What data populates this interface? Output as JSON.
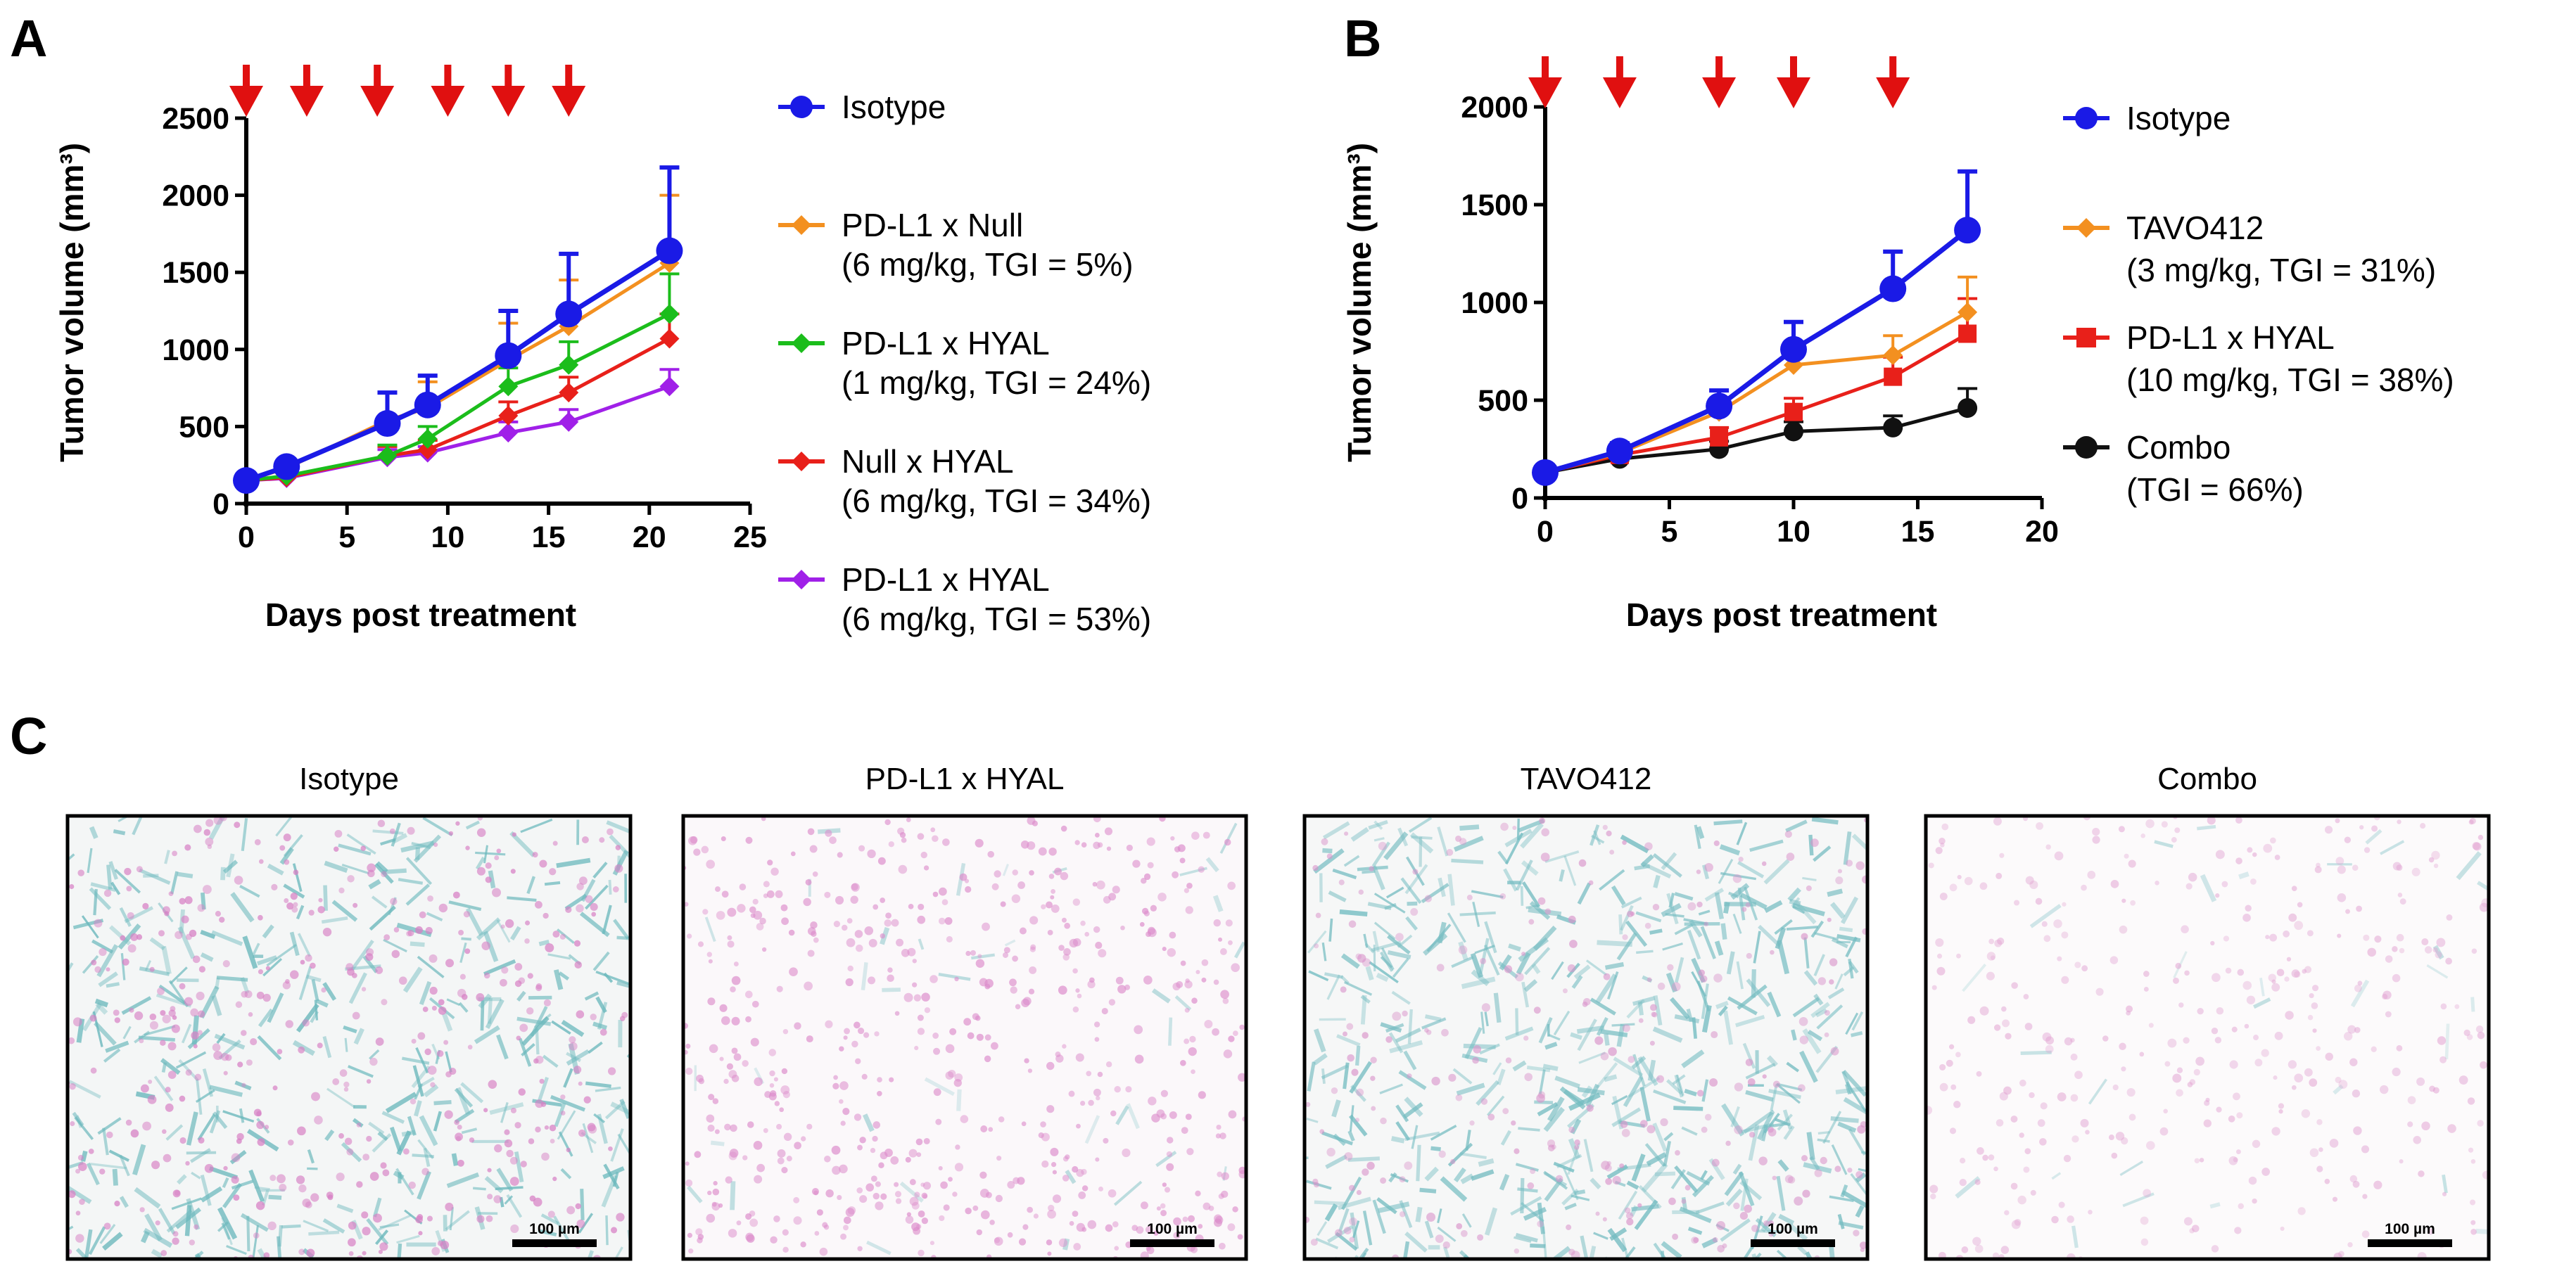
{
  "panels": {
    "a": "A",
    "b": "B",
    "c": "C"
  },
  "colors": {
    "isotype": "#1a1ae6",
    "pdl1_null": "#f39020",
    "pdl1_hyal_green": "#1bbd1b",
    "null_hyal": "#e8201a",
    "pdl1_hyal_purple": "#a020e8",
    "tavo412": "#f39020",
    "pdl1_hyal_red": "#e8201a",
    "combo": "#111111",
    "arrow": "#e01010"
  },
  "chart_data": [
    {
      "type": "line",
      "panel": "A",
      "xlabel": "Days post treatment",
      "ylabel": "Tumor volume (mm³)",
      "xlim": [
        0,
        25
      ],
      "ylim": [
        0,
        2500
      ],
      "xticks": [
        0,
        5,
        10,
        15,
        20,
        25
      ],
      "yticks": [
        0,
        500,
        1000,
        1500,
        2000,
        2500
      ],
      "dosing_days": [
        0,
        3,
        6.5,
        10,
        13,
        16
      ],
      "x": [
        0,
        2,
        7,
        9,
        13,
        16,
        21
      ],
      "legend_position": "right",
      "series": [
        {
          "name": "Isotype",
          "sub": "",
          "color": "#1a1ae6",
          "marker": "circle",
          "values": [
            150,
            240,
            520,
            640,
            960,
            1230,
            1640
          ],
          "err": [
            20,
            40,
            200,
            190,
            290,
            390,
            540
          ]
        },
        {
          "name": "PD-L1 x  Null",
          "sub": " (6 mg/kg, TGI = 5%)",
          "color": "#f39020",
          "marker": "diamond",
          "values": [
            150,
            230,
            540,
            620,
            930,
            1150,
            1560
          ],
          "err": [
            20,
            40,
            180,
            170,
            240,
            300,
            440
          ]
        },
        {
          "name": "PD-L1 x HYAL",
          "sub": "(1 mg/kg, TGI = 24%)",
          "color": "#1bbd1b",
          "marker": "diamond",
          "values": [
            150,
            180,
            310,
            420,
            760,
            900,
            1230
          ],
          "err": [
            20,
            30,
            70,
            80,
            120,
            150,
            260
          ]
        },
        {
          "name": "Null x HYAL",
          "sub": "(6 mg/kg, TGI = 34%)",
          "color": "#e8201a",
          "marker": "diamond",
          "values": [
            150,
            170,
            310,
            350,
            570,
            720,
            1070
          ],
          "err": [
            20,
            25,
            60,
            60,
            90,
            100,
            160
          ]
        },
        {
          "name": "PD-L1 x HYAL",
          "sub": "(6 mg/kg, TGI = 53%)",
          "color": "#a020e8",
          "marker": "diamond",
          "values": [
            150,
            165,
            300,
            330,
            460,
            530,
            760
          ],
          "err": [
            20,
            20,
            50,
            40,
            70,
            80,
            110
          ]
        }
      ]
    },
    {
      "type": "line",
      "panel": "B",
      "xlabel": "Days post treatment",
      "ylabel": "Tumor volume (mm³)",
      "xlim": [
        0,
        20
      ],
      "ylim": [
        0,
        2000
      ],
      "xticks": [
        0,
        5,
        10,
        15,
        20
      ],
      "yticks": [
        0,
        500,
        1000,
        1500,
        2000
      ],
      "dosing_days": [
        0,
        3,
        7,
        10,
        14
      ],
      "x": [
        0,
        3,
        7,
        10,
        14,
        17
      ],
      "legend_position": "right",
      "series": [
        {
          "name": "Isotype",
          "sub": "",
          "color": "#1a1ae6",
          "marker": "circle",
          "values": [
            130,
            240,
            470,
            760,
            1070,
            1370
          ],
          "err": [
            20,
            40,
            80,
            140,
            190,
            300
          ]
        },
        {
          "name": "TAVO412",
          "sub": "(3 mg/kg, TGI = 31%)",
          "color": "#f39020",
          "marker": "diamond",
          "values": [
            130,
            230,
            440,
            680,
            730,
            950
          ],
          "err": [
            20,
            30,
            60,
            100,
            100,
            180
          ]
        },
        {
          "name": "PD-L1 x HYAL",
          "sub": "(10 mg/kg, TGI = 38%)",
          "color": "#e8201a",
          "marker": "square",
          "values": [
            130,
            220,
            310,
            440,
            620,
            840
          ],
          "err": [
            20,
            30,
            50,
            70,
            100,
            180
          ]
        },
        {
          "name": "Combo",
          "sub": "(TGI = 66%)",
          "color": "#111111",
          "marker": "circle",
          "values": [
            130,
            200,
            250,
            340,
            360,
            460
          ],
          "err": [
            15,
            25,
            40,
            50,
            60,
            100
          ]
        }
      ]
    }
  ],
  "micrographs": [
    {
      "title": "Isotype",
      "scale": "100 µm",
      "stain": "mixed-dense"
    },
    {
      "title": "PD-L1 x HYAL",
      "scale": "100 µm",
      "stain": "pink"
    },
    {
      "title": "TAVO412",
      "scale": "100 µm",
      "stain": "mixed-stroma"
    },
    {
      "title": "Combo",
      "scale": "100 µm",
      "stain": "pink-faint"
    }
  ]
}
